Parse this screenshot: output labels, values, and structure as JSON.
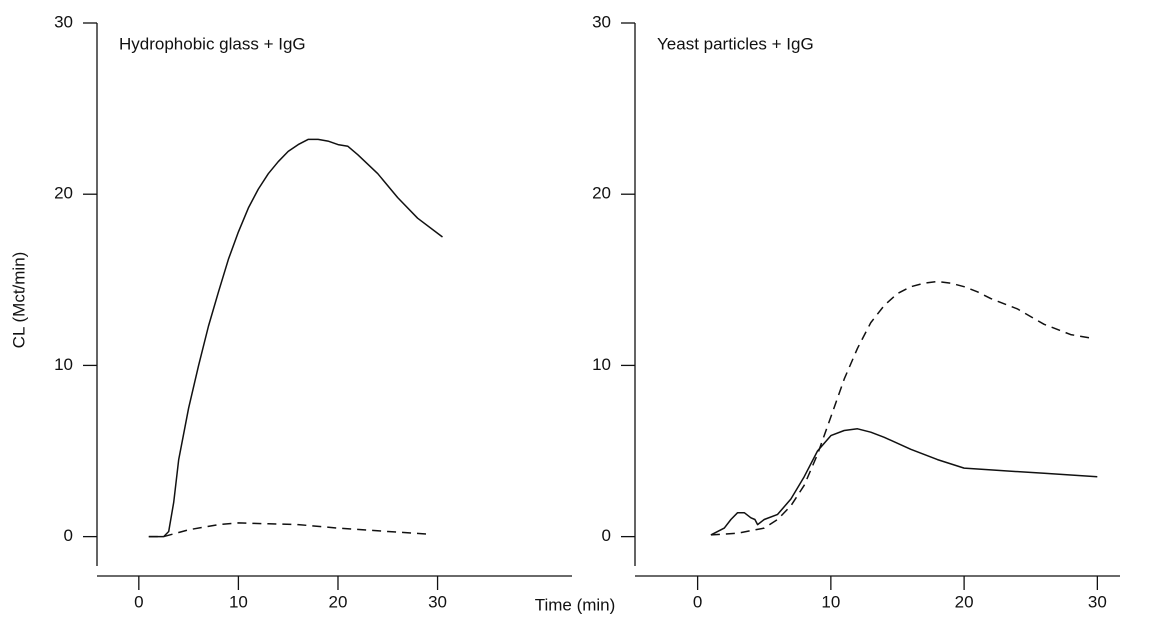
{
  "chart_data": [
    {
      "type": "line",
      "title": "Hydrophobic glass + IgG",
      "ylabel": "CL (Mct/min)",
      "xlim": [
        -4.2,
        43.5
      ],
      "ylim": [
        -2.3,
        30
      ],
      "xticks": [
        0,
        10,
        20,
        30
      ],
      "yticks": [
        0,
        10,
        20,
        30
      ],
      "series": [
        {
          "color": "#111111",
          "style": "solid",
          "x": [
            1,
            2,
            2.5,
            3,
            3.5,
            4,
            5,
            6,
            7,
            8,
            9,
            10,
            11,
            12,
            13,
            14,
            15,
            16,
            17,
            18,
            19,
            20,
            21,
            22,
            24,
            26,
            28,
            30.5
          ],
          "values": [
            0,
            0,
            0,
            0.3,
            2,
            4.5,
            7.5,
            10,
            12.3,
            14.3,
            16.2,
            17.8,
            19.2,
            20.3,
            21.2,
            21.9,
            22.5,
            22.9,
            23.2,
            23.2,
            23.1,
            22.9,
            22.8,
            22.3,
            21.2,
            19.8,
            18.6,
            17.5
          ]
        },
        {
          "color": "#111111",
          "style": "dashed",
          "x": [
            1,
            2.5,
            5,
            8,
            10,
            13,
            16,
            20,
            25,
            29
          ],
          "values": [
            0,
            0,
            0.4,
            0.7,
            0.8,
            0.75,
            0.7,
            0.5,
            0.3,
            0.15
          ]
        }
      ]
    },
    {
      "type": "line",
      "title": "Yeast particles + IgG",
      "xlim": [
        -4.7,
        31.7
      ],
      "ylim": [
        -2.3,
        30
      ],
      "xticks": [
        0,
        10,
        20,
        30
      ],
      "yticks": [
        0,
        10,
        20,
        30
      ],
      "series": [
        {
          "color": "#111111",
          "style": "solid",
          "x": [
            1,
            2,
            2.5,
            3,
            3.5,
            4,
            4.3,
            4.5,
            5,
            6,
            7,
            8,
            9,
            10,
            11,
            12,
            13,
            14,
            16,
            18,
            20,
            22,
            26,
            30
          ],
          "values": [
            0.1,
            0.5,
            1.0,
            1.4,
            1.4,
            1.1,
            1.0,
            0.7,
            1.0,
            1.3,
            2.2,
            3.5,
            5.0,
            5.9,
            6.2,
            6.3,
            6.1,
            5.8,
            5.1,
            4.5,
            4.0,
            3.9,
            3.7,
            3.5
          ]
        },
        {
          "color": "#111111",
          "style": "dashed",
          "x": [
            1,
            3,
            5,
            6,
            7,
            8,
            9,
            10,
            11,
            12,
            13,
            14,
            15,
            16,
            17,
            18,
            19,
            20,
            21,
            22,
            24,
            26,
            28,
            29.5
          ],
          "values": [
            0.1,
            0.2,
            0.5,
            1,
            1.8,
            3,
            4.8,
            7,
            9.2,
            11,
            12.5,
            13.5,
            14.2,
            14.6,
            14.8,
            14.9,
            14.8,
            14.6,
            14.3,
            13.9,
            13.3,
            12.4,
            11.8,
            11.6
          ]
        }
      ]
    }
  ],
  "xlabel": "Time (min)"
}
